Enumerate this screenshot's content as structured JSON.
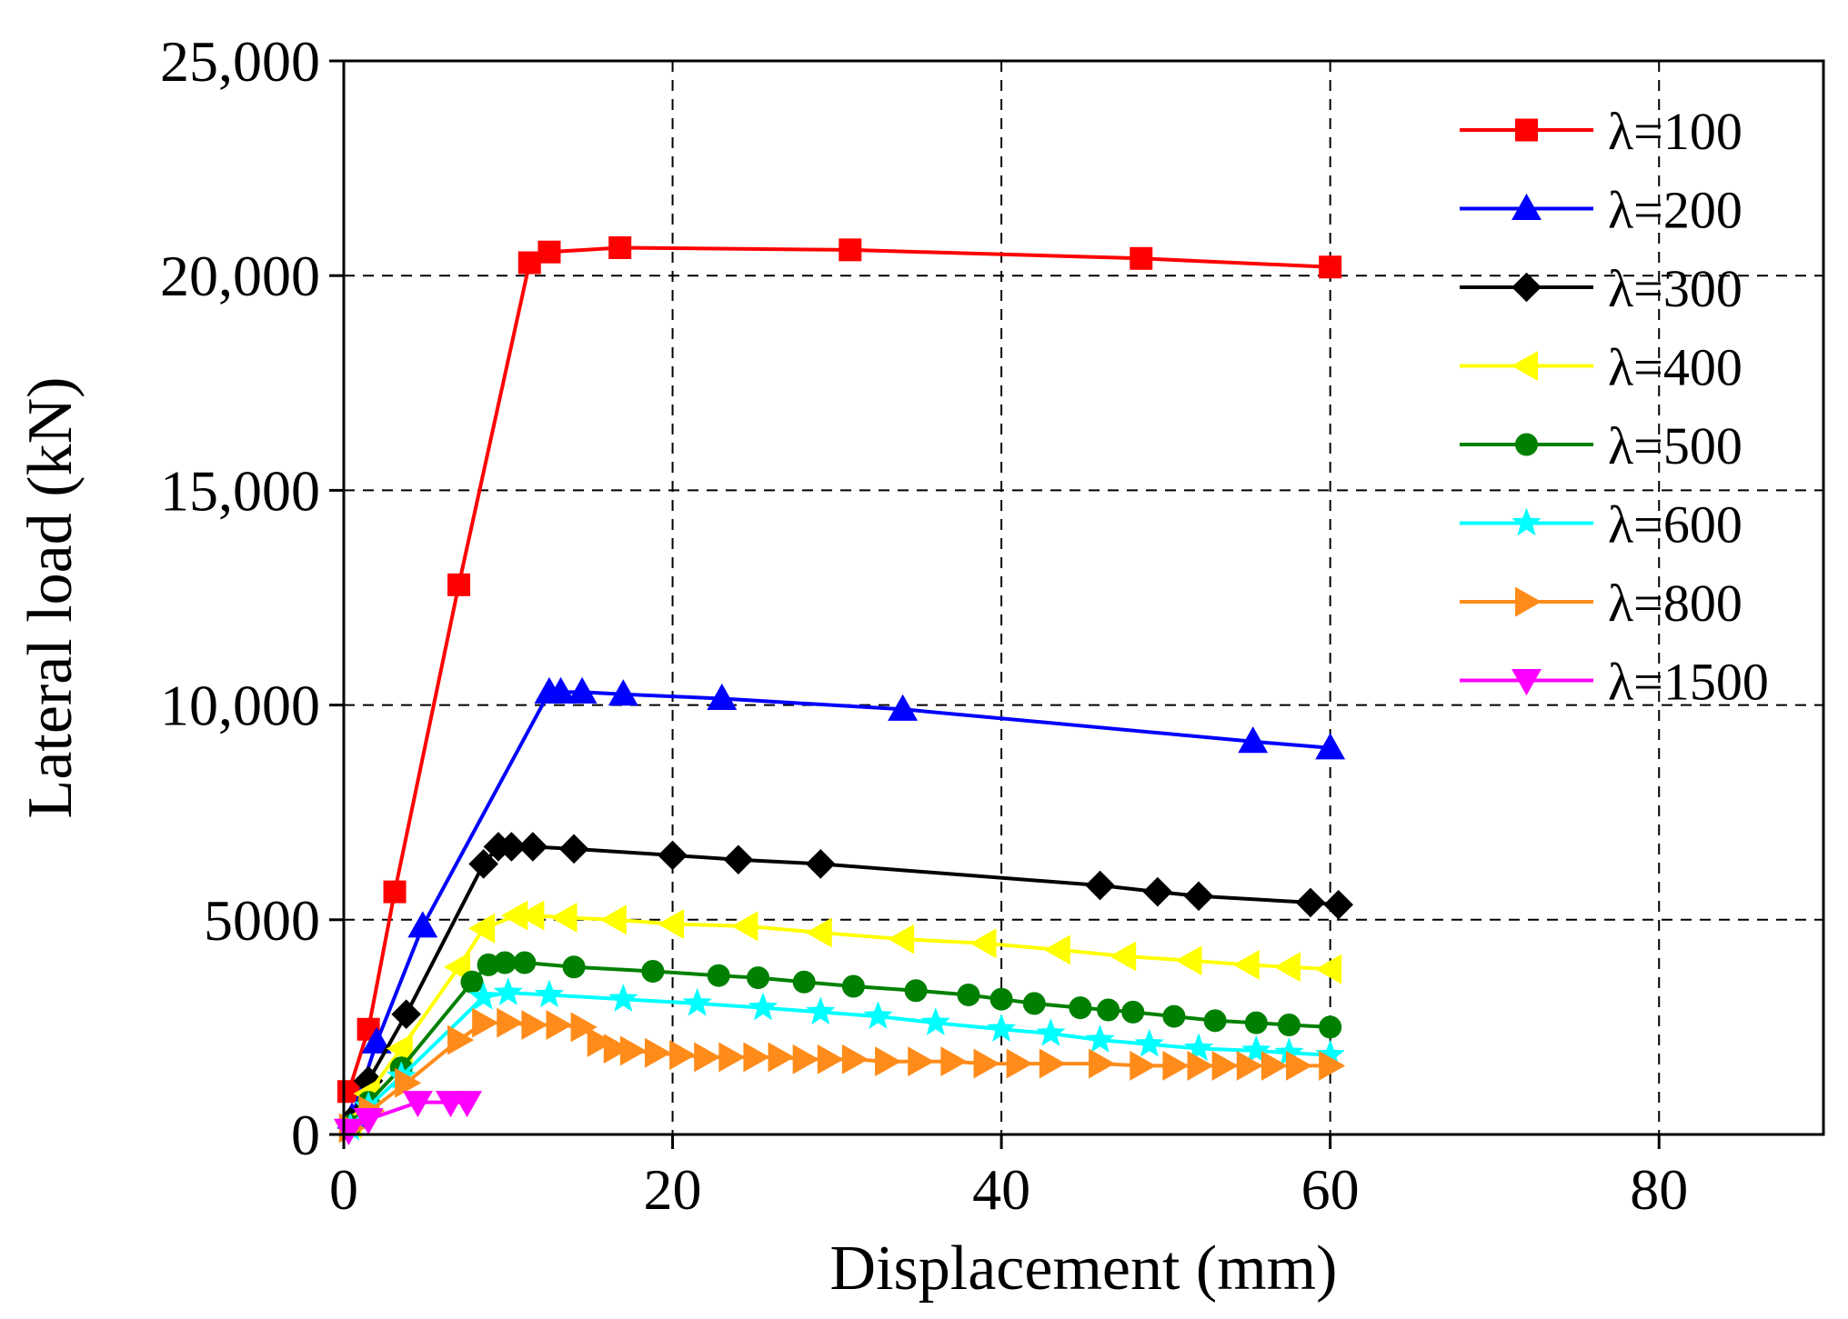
{
  "chart_data": {
    "type": "line",
    "title": "",
    "xlabel": "Displacement (mm)",
    "ylabel": "Lateral load (kN)",
    "xlim": [
      0,
      90
    ],
    "ylim": [
      0,
      25000
    ],
    "x_ticks": [
      0,
      20,
      40,
      60,
      80
    ],
    "x_tick_labels": [
      "0",
      "20",
      "40",
      "60",
      "80"
    ],
    "y_ticks": [
      0,
      5000,
      10000,
      15000,
      20000,
      25000
    ],
    "y_tick_labels": [
      "0",
      "5000",
      "10,000",
      "15,000",
      "20,000",
      "25,000"
    ],
    "grid": true,
    "legend_position": "top-right",
    "series": [
      {
        "name": "λ=100",
        "color": "#ff0000",
        "marker": "square",
        "x": [
          0.3,
          1.5,
          3.1,
          7.0,
          11.3,
          12.5,
          16.8,
          30.8,
          48.5,
          60.0
        ],
        "y": [
          1000,
          2450,
          5650,
          12800,
          20300,
          20550,
          20650,
          20600,
          20400,
          20200
        ]
      },
      {
        "name": "λ=200",
        "color": "#0000ff",
        "marker": "triangle-up",
        "x": [
          0.5,
          2.0,
          4.8,
          12.5,
          13.2,
          14.5,
          17.0,
          23.0,
          34.0,
          55.3,
          60.0
        ],
        "y": [
          400,
          2150,
          4850,
          10300,
          10300,
          10300,
          10250,
          10150,
          9900,
          9150,
          9000
        ],
        "line_x": [
          0.5,
          2.0,
          4.8,
          12.5,
          13.2,
          14.5,
          17.0,
          23.0,
          34.0,
          55.3,
          60.0
        ],
        "line_y": [
          400,
          2150,
          4850,
          10300,
          10300,
          10300,
          10250,
          10150,
          9900,
          9150,
          9000
        ]
      },
      {
        "name": "λ=300",
        "color": "#000000",
        "marker": "diamond",
        "x": [
          0.4,
          1.5,
          3.8,
          8.5,
          9.4,
          10.2,
          11.5,
          14.0,
          20.0,
          24.0,
          29.0,
          46.0,
          49.5,
          52.0,
          58.8,
          60.5
        ],
        "y": [
          300,
          1250,
          2800,
          6300,
          6700,
          6700,
          6700,
          6650,
          6500,
          6400,
          6300,
          5800,
          5650,
          5550,
          5400,
          5350
        ]
      },
      {
        "name": "λ=400",
        "color": "#ffff00",
        "marker": "triangle-left",
        "x": [
          0.4,
          1.5,
          3.5,
          7.0,
          8.5,
          10.5,
          11.5,
          13.5,
          16.5,
          20.0,
          24.5,
          29.0,
          34.0,
          39.0,
          43.5,
          47.5,
          51.5,
          55.0,
          57.5,
          60.0
        ],
        "y": [
          250,
          950,
          2000,
          3900,
          4800,
          5100,
          5100,
          5050,
          5000,
          4900,
          4850,
          4700,
          4550,
          4450,
          4300,
          4150,
          4050,
          3950,
          3900,
          3850
        ]
      },
      {
        "name": "λ=500",
        "color": "#008000",
        "marker": "circle",
        "x": [
          0.4,
          1.5,
          3.5,
          7.8,
          8.8,
          9.8,
          11.0,
          14.0,
          18.8,
          22.8,
          25.2,
          28.0,
          31.0,
          34.8,
          38.0,
          40.0,
          42.0,
          44.8,
          46.5,
          48.0,
          50.5,
          53.0,
          55.5,
          57.5,
          60.0
        ],
        "y": [
          200,
          750,
          1550,
          3550,
          3950,
          4000,
          4000,
          3900,
          3800,
          3700,
          3650,
          3550,
          3450,
          3350,
          3250,
          3150,
          3050,
          2950,
          2900,
          2850,
          2750,
          2650,
          2600,
          2550,
          2500
        ]
      },
      {
        "name": "λ=600",
        "color": "#00ffff",
        "marker": "star",
        "x": [
          0.4,
          1.5,
          3.5,
          8.5,
          10.0,
          12.5,
          17.0,
          21.5,
          25.5,
          29.0,
          32.5,
          36.0,
          40.0,
          43.0,
          46.0,
          49.0,
          52.0,
          55.5,
          57.5,
          60.0
        ],
        "y": [
          150,
          650,
          1350,
          3200,
          3300,
          3250,
          3150,
          3050,
          2950,
          2850,
          2750,
          2600,
          2450,
          2350,
          2200,
          2100,
          2000,
          1950,
          1900,
          1850
        ]
      },
      {
        "name": "λ=800",
        "color": "#ff8c1a",
        "marker": "triangle-right",
        "x": [
          0.4,
          1.6,
          3.8,
          7.0,
          8.5,
          10.0,
          11.5,
          13.0,
          14.5,
          15.5,
          16.5,
          17.5,
          19.0,
          20.5,
          22.0,
          23.5,
          25.0,
          26.5,
          28.0,
          29.5,
          31.0,
          33.0,
          35.0,
          37.0,
          39.0,
          41.0,
          43.0,
          46.0,
          48.5,
          50.5,
          52.0,
          53.5,
          55.0,
          56.5,
          58.0,
          60.0
        ],
        "y": [
          150,
          550,
          1200,
          2200,
          2600,
          2600,
          2550,
          2550,
          2500,
          2150,
          2000,
          1950,
          1900,
          1850,
          1800,
          1800,
          1800,
          1800,
          1750,
          1750,
          1750,
          1700,
          1700,
          1700,
          1650,
          1650,
          1650,
          1650,
          1600,
          1600,
          1600,
          1600,
          1600,
          1600,
          1600,
          1600
        ]
      },
      {
        "name": "λ=1500",
        "color": "#ff00ff",
        "marker": "triangle-down",
        "x": [
          0.3,
          1.5,
          4.5,
          6.5,
          7.5
        ],
        "y": [
          100,
          350,
          750,
          750,
          750
        ]
      }
    ]
  }
}
